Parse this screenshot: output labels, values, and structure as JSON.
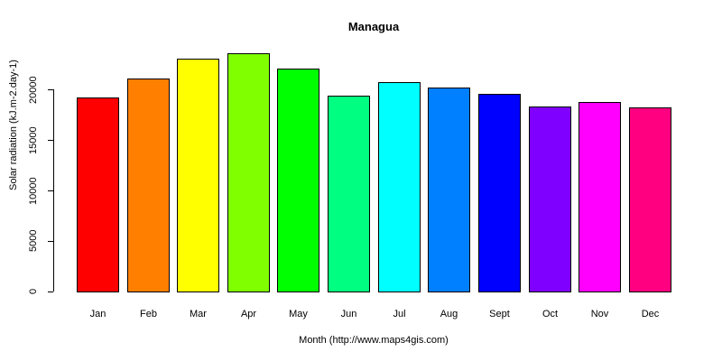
{
  "chart_data": {
    "type": "bar",
    "title": "Managua",
    "xlabel": "Month (http://www.maps4gis.com)",
    "ylabel": "Solar radiation (kJ.m-2.day-1)",
    "categories": [
      "Jan",
      "Feb",
      "Mar",
      "Apr",
      "May",
      "Jun",
      "Jul",
      "Aug",
      "Sept",
      "Oct",
      "Nov",
      "Dec"
    ],
    "values": [
      19200,
      21100,
      23100,
      23600,
      22100,
      19400,
      20700,
      20200,
      19600,
      18300,
      18800,
      18200
    ],
    "colors": [
      "#FF0000",
      "#FF8000",
      "#FFFF00",
      "#80FF00",
      "#00FF00",
      "#00FF80",
      "#00FFFF",
      "#0080FF",
      "#0000FF",
      "#8000FF",
      "#FF00FF",
      "#FF0080"
    ],
    "yticks": [
      0,
      5000,
      10000,
      15000,
      20000
    ],
    "ylim": [
      0,
      24000
    ],
    "grid": false,
    "legend": null
  }
}
